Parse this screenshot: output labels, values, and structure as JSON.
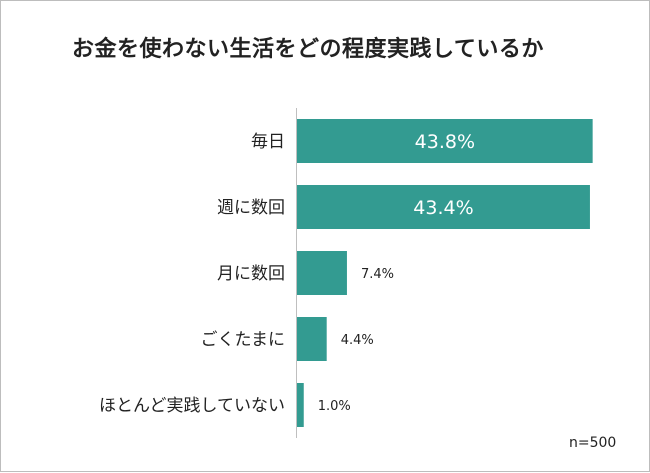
{
  "chart_data": {
    "type": "bar",
    "orientation": "horizontal",
    "title": "お金を使わない生活をどの程度実践しているか",
    "categories": [
      "毎日",
      "週に数回",
      "月に数回",
      "ごくたまに",
      "ほとんど実践していない"
    ],
    "values": [
      43.8,
      43.4,
      7.4,
      4.4,
      1.0
    ],
    "value_labels": [
      "43.8%",
      "43.4%",
      "7.4%",
      "4.4%",
      "1.0%"
    ],
    "xlim": [
      0,
      50
    ],
    "grid": false,
    "legend": "none",
    "bar_color": "#339b91",
    "note": "n=500"
  }
}
